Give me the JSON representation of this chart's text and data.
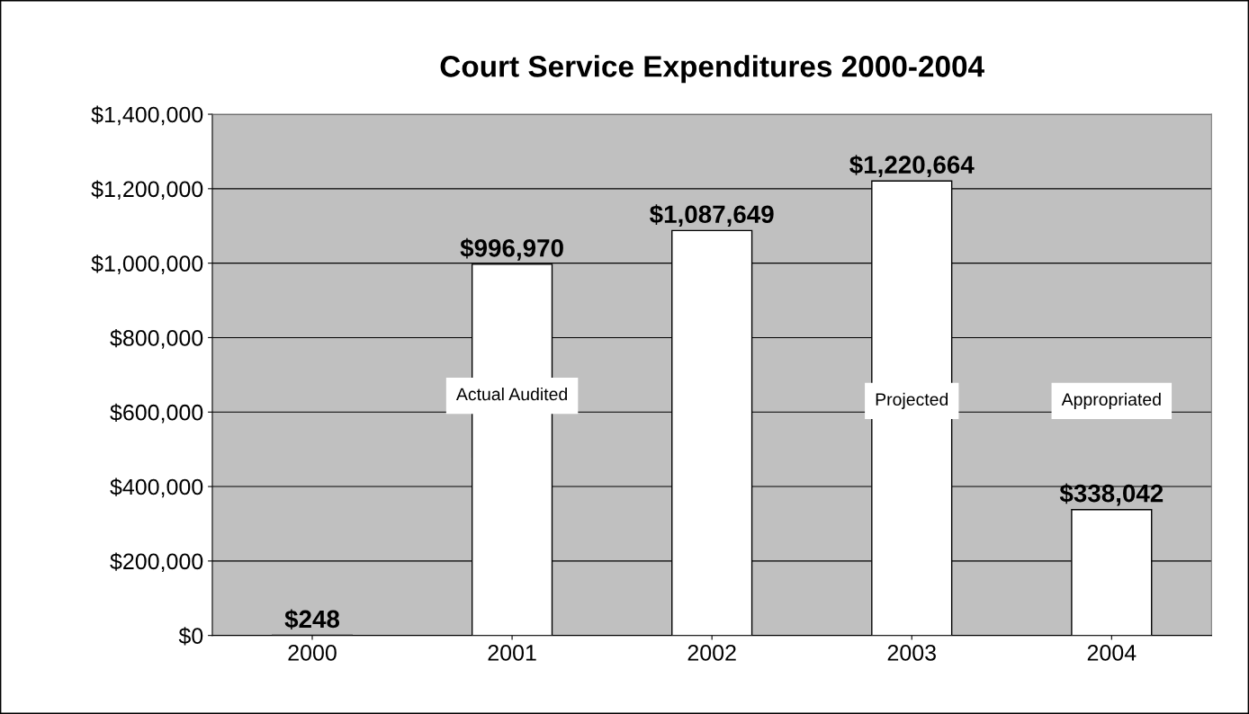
{
  "chart_data": {
    "type": "bar",
    "title": "Court Service Expenditures 2000-2004",
    "categories": [
      "2000",
      "2001",
      "2002",
      "2003",
      "2004"
    ],
    "values": [
      248,
      996970,
      1087649,
      1220664,
      338042
    ],
    "value_labels": [
      "$248",
      "$996,970",
      "$1,087,649",
      "$1,220,664",
      "$338,042"
    ],
    "color": "#ffffff",
    "ylim": [
      0,
      1400000
    ],
    "yticks": [
      {
        "value": 0,
        "label": "$0"
      },
      {
        "value": 200000,
        "label": "$200,000"
      },
      {
        "value": 400000,
        "label": "$400,000"
      },
      {
        "value": 600000,
        "label": "$600,000"
      },
      {
        "value": 800000,
        "label": "$800,000"
      },
      {
        "value": 1000000,
        "label": "$1,000,000"
      },
      {
        "value": 1200000,
        "label": "$1,200,000"
      },
      {
        "value": 1400000,
        "label": "$1,400,000"
      }
    ],
    "grid": "y",
    "annotations": [
      "Actual Audited",
      "Projected",
      "Appropriated"
    ]
  }
}
